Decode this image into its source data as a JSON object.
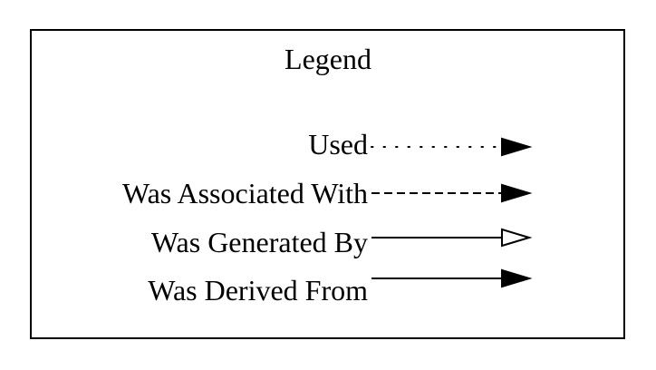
{
  "legend": {
    "title": "Legend",
    "entries": [
      {
        "label": "Used",
        "line_style": "dotted",
        "arrowhead": "filled"
      },
      {
        "label": "Was Associated With",
        "line_style": "dashed",
        "arrowhead": "filled"
      },
      {
        "label": "Was Generated By",
        "line_style": "solid",
        "arrowhead": "hollow"
      },
      {
        "label": "Was Derived From",
        "line_style": "solid",
        "arrowhead": "filled"
      }
    ]
  },
  "colors": {
    "stroke": "#000000",
    "background": "#ffffff"
  }
}
